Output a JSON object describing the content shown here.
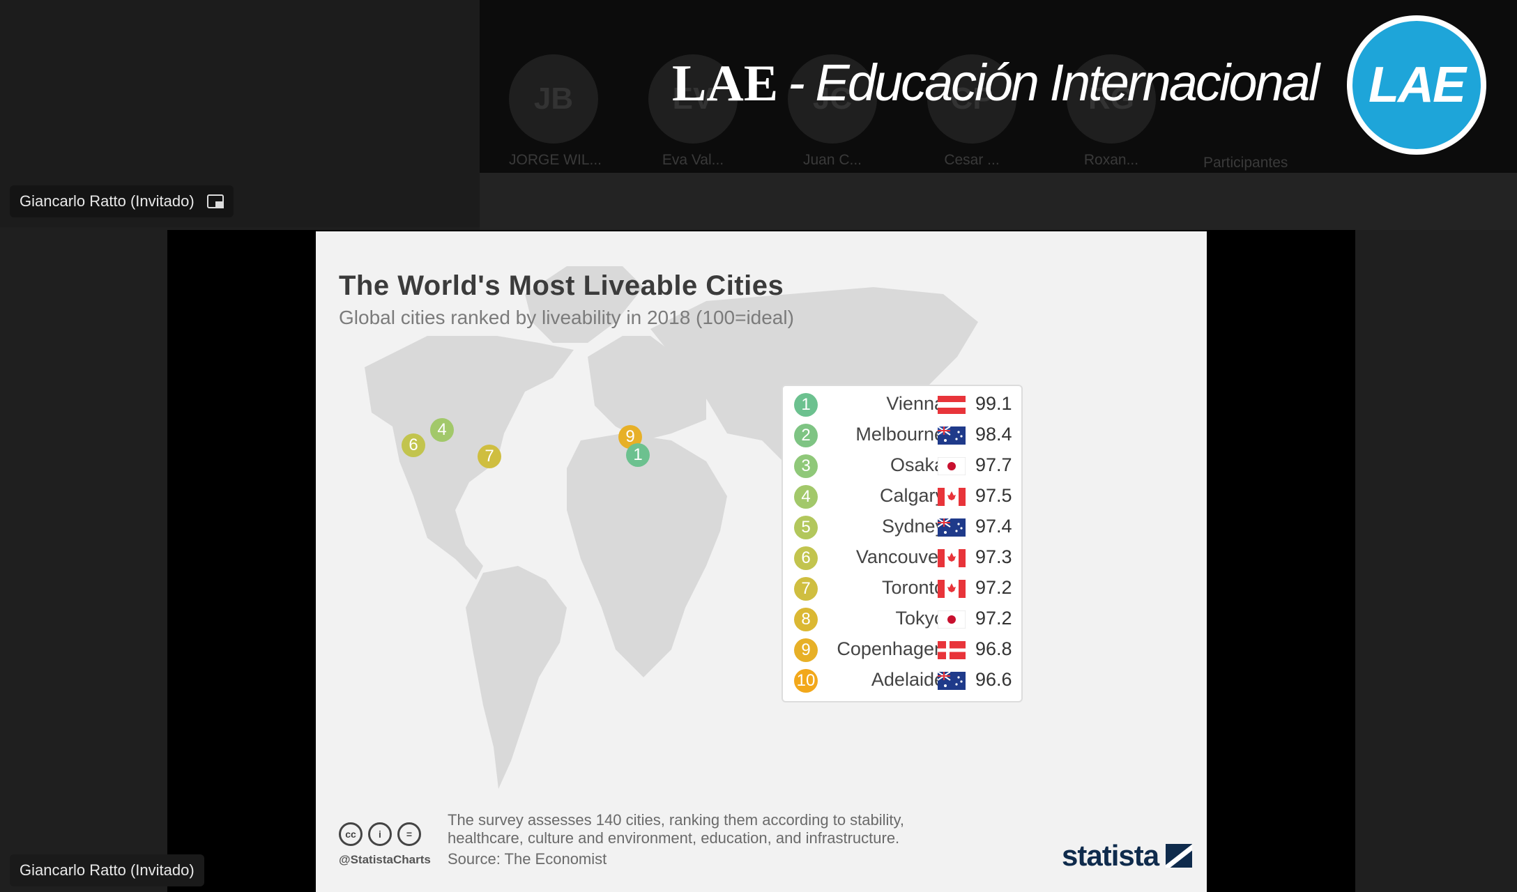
{
  "speaker": {
    "name": "Giancarlo Ratto (Invitado)"
  },
  "presenter": {
    "name": "Giancarlo Ratto (Invitado)"
  },
  "participants": [
    {
      "initials": "JB",
      "name": "JORGE WIL..."
    },
    {
      "initials": "EV",
      "name": "Eva Val..."
    },
    {
      "initials": "JC",
      "name": "Juan C..."
    },
    {
      "initials": "CP",
      "name": "Cesar ..."
    },
    {
      "initials": "RG",
      "name": "Roxan..."
    }
  ],
  "participants_label": "Participantes",
  "brand": {
    "bold": "LAE",
    "rest": "- Educación Internacional",
    "logo": "LAE"
  },
  "chart_data": {
    "type": "table",
    "title": "The World's Most Liveable Cities",
    "subtitle": "Global cities ranked by liveability in 2018 (100=ideal)",
    "rows": [
      {
        "rank": "1",
        "city": "Vienna",
        "flag": "austria-flag",
        "score": "99.1",
        "color": "#6cc18f"
      },
      {
        "rank": "2",
        "city": "Melbourne",
        "flag": "australia-flag",
        "score": "98.4",
        "color": "#7ec483"
      },
      {
        "rank": "3",
        "city": "Osaka",
        "flag": "japan-flag",
        "score": "97.7",
        "color": "#8fc879"
      },
      {
        "rank": "4",
        "city": "Calgary",
        "flag": "canada-flag",
        "score": "97.5",
        "color": "#a2c86a"
      },
      {
        "rank": "5",
        "city": "Sydney",
        "flag": "australia-flag",
        "score": "97.4",
        "color": "#b2c75c"
      },
      {
        "rank": "6",
        "city": "Vancouver",
        "flag": "canada-flag",
        "score": "97.3",
        "color": "#c2c44e"
      },
      {
        "rank": "7",
        "city": "Toronto",
        "flag": "canada-flag",
        "score": "97.2",
        "color": "#cfbe40"
      },
      {
        "rank": "8",
        "city": "Tokyo",
        "flag": "japan-flag",
        "score": "97.2",
        "color": "#dbb833"
      },
      {
        "rank": "9",
        "city": "Copenhagen",
        "flag": "denmark-flag",
        "score": "96.8",
        "color": "#e7b027"
      },
      {
        "rank": "10",
        "city": "Adelaide",
        "flag": "australia-flag",
        "score": "96.6",
        "color": "#f2a81b"
      }
    ]
  },
  "footer": {
    "note": "The survey assesses 140 cities,  ranking them according to stability, healthcare, culture and environment, education, and infrastructure.",
    "source": "Source: The Economist",
    "handle": "@StatistaCharts",
    "logo": "statista",
    "cc_icons": [
      "cc",
      "i",
      "="
    ]
  }
}
